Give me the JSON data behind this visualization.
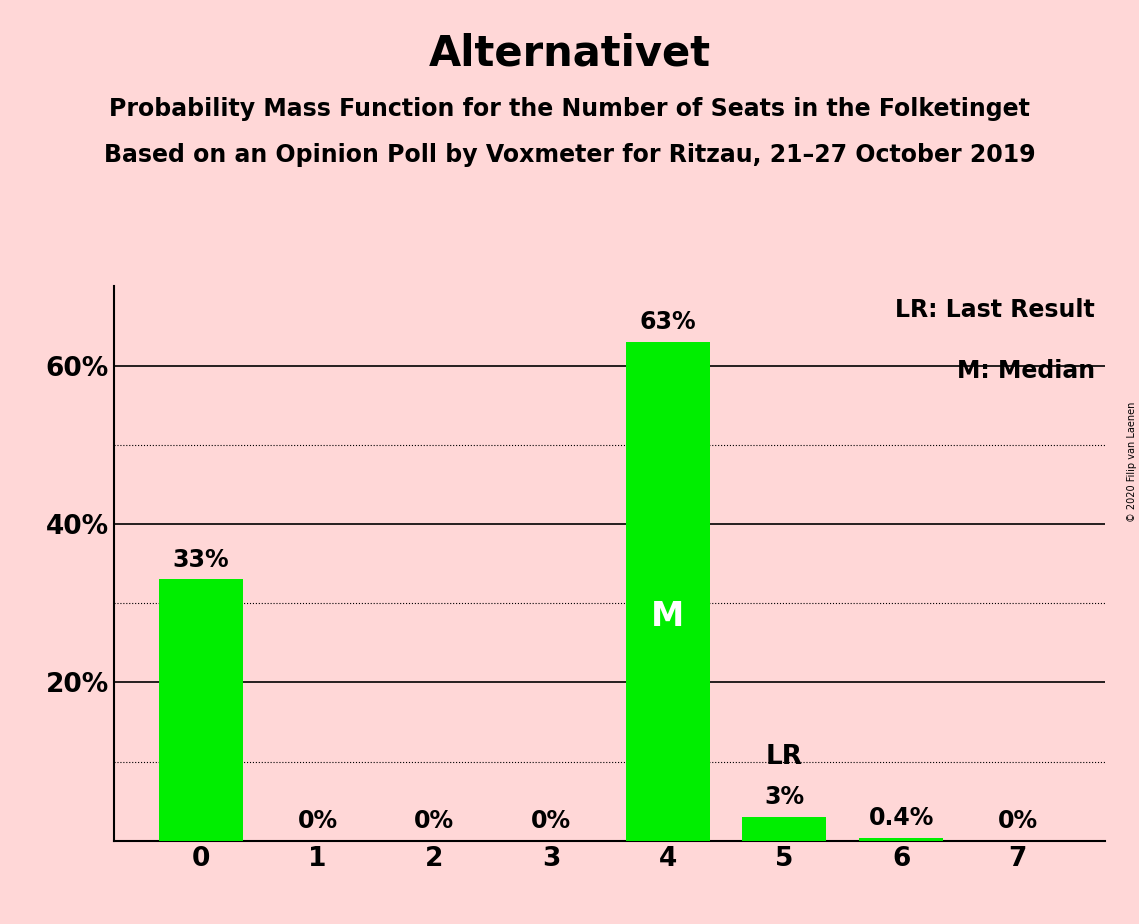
{
  "title": "Alternativet",
  "subtitle1": "Probability Mass Function for the Number of Seats in the Folketinget",
  "subtitle2": "Based on an Opinion Poll by Voxmeter for Ritzau, 21–27 October 2019",
  "copyright": "© 2020 Filip van Laenen",
  "categories": [
    0,
    1,
    2,
    3,
    4,
    5,
    6,
    7
  ],
  "values": [
    33,
    0,
    0,
    0,
    63,
    3,
    0.4,
    0
  ],
  "bar_labels": [
    "33%",
    "0%",
    "0%",
    "0%",
    "63%",
    "3%",
    "0.4%",
    "0%"
  ],
  "bar_color": "#00ee00",
  "background_color": "#ffd7d7",
  "median_bar": 4,
  "median_label": "M",
  "lr_bar": 5,
  "lr_label": "LR",
  "ylim": [
    0,
    70
  ],
  "solid_yticks": [
    20,
    40,
    60
  ],
  "dotted_yticks": [
    10,
    30,
    50
  ],
  "legend_text1": "LR: Last Result",
  "legend_text2": "M: Median",
  "title_fontsize": 30,
  "subtitle_fontsize": 17,
  "bar_label_fontsize": 17,
  "axis_tick_fontsize": 19,
  "legend_fontsize": 17,
  "median_label_fontsize": 24,
  "lr_label_fontsize": 19,
  "bar_width": 0.72
}
